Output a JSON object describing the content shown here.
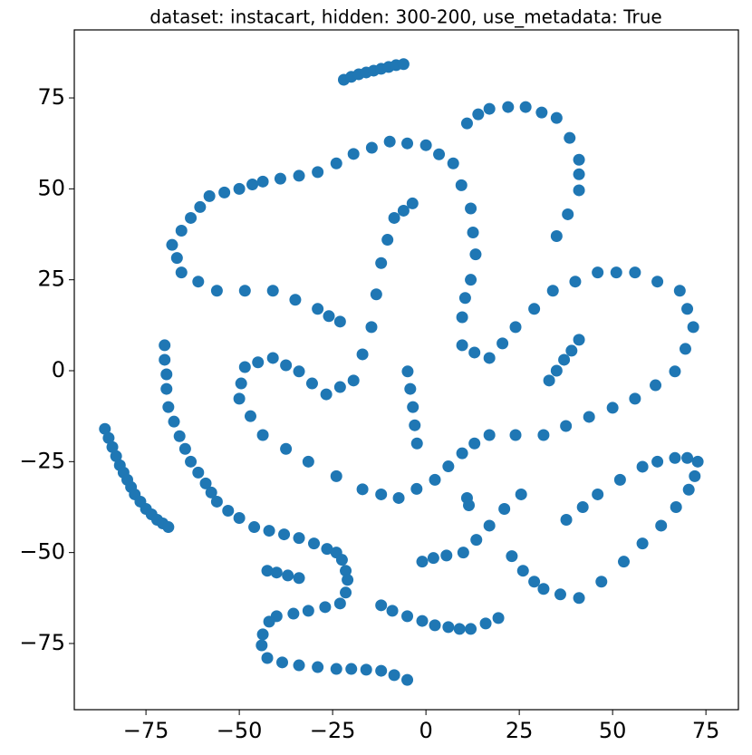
{
  "chart_data": {
    "type": "scatter",
    "title": "dataset: instacart, hidden: 300-200, use_metadata: True",
    "color": "#1f77b4",
    "xlim": [
      -94.2,
      83.7
    ],
    "ylim": [
      -93.2,
      93.7
    ],
    "xticks": [
      {
        "value": -75,
        "label": "−75"
      },
      {
        "value": -50,
        "label": "−50"
      },
      {
        "value": -25,
        "label": "−25"
      },
      0,
      25,
      50,
      75
    ],
    "yticks": [
      {
        "value": -75,
        "label": "−75"
      },
      {
        "value": -50,
        "label": "−50"
      },
      {
        "value": -25,
        "label": "−25"
      },
      0,
      25,
      50,
      75
    ],
    "x": [
      -22,
      -20,
      -18,
      -16,
      -14,
      -12,
      -10,
      -8,
      -6,
      -86,
      -85,
      -84,
      -83,
      -82,
      -81,
      -80,
      -79,
      -78,
      -76.5,
      -75,
      -73.5,
      -72,
      -70.5,
      -69,
      -70,
      -70,
      -69.5,
      -69.5,
      -69,
      -67.5,
      -66,
      -64.5,
      -63,
      -61,
      -59,
      -57.5,
      -56,
      -53,
      -50,
      -46,
      -42,
      -38,
      -34,
      -30,
      -26.5,
      -24,
      -22.5,
      -21.5,
      -21,
      -21.5,
      -23,
      -27,
      -31.5,
      -35.5,
      -40,
      -42,
      -43.7,
      -44,
      -42.5,
      -38.5,
      -34,
      -29,
      -24,
      -20,
      -16,
      -12,
      -8.5,
      -5,
      -42.5,
      -40,
      -37,
      -34,
      -12,
      -9,
      -5,
      -1,
      2.4,
      6,
      9,
      12,
      16,
      19.4,
      11,
      11.5,
      -1,
      2,
      5.5,
      10,
      13.5,
      17,
      21,
      25.5,
      23,
      26,
      29,
      31.5,
      36,
      41,
      47,
      53,
      58,
      63,
      67,
      70.4,
      72,
      72.8,
      70,
      66.7,
      62,
      58,
      52,
      46,
      42,
      37.6,
      11,
      14,
      17,
      22,
      26.7,
      31,
      35,
      38.5,
      41,
      41,
      41,
      38,
      35,
      33,
      35,
      37,
      39,
      41,
      -68,
      -65.5,
      -63,
      -60.5,
      -58,
      -54,
      -50,
      -46.5,
      -43.7,
      -39,
      -34,
      -29,
      -24,
      -19.4,
      -14.5,
      -9.7,
      -5,
      0,
      3.5,
      7.3,
      9.5,
      12,
      12.6,
      13.3,
      12,
      10.5,
      9.7,
      9.7,
      13,
      17,
      20.5,
      24,
      29,
      34,
      40,
      46,
      51,
      56,
      62,
      68,
      70,
      71.6,
      69.5,
      66.7,
      61.5,
      56,
      50,
      43.7,
      37.5,
      31.5,
      24,
      17,
      13,
      9.7,
      6,
      2.4,
      -2.5,
      -7.3,
      -12,
      -17,
      -24,
      -31.5,
      -37.5,
      -43.7,
      -47,
      -50,
      -49.5,
      -48.5,
      -45,
      -41,
      -37.5,
      -34,
      -30.5,
      -26.7,
      -23,
      -19.4,
      -17,
      -14.6,
      -13.3,
      -12,
      -10.3,
      -8.5,
      -6,
      -3.6,
      -66.7,
      -65.5,
      -61,
      -56,
      -48.5,
      -41,
      -35,
      -29,
      -26,
      -23,
      -4.9,
      -4.2,
      -3.5,
      -3,
      -2.4
    ],
    "values": [
      80,
      80.8,
      81.5,
      82,
      82.5,
      83,
      83.5,
      84,
      84.3,
      -16,
      -18.5,
      -21,
      -23.5,
      -26,
      -28,
      -30,
      -32,
      -34,
      -36,
      -38,
      -39.5,
      -41,
      -42,
      -43,
      7,
      3,
      -1,
      -5,
      -10,
      -14,
      -18,
      -21.5,
      -25,
      -28,
      -31,
      -33.5,
      -36,
      -38.5,
      -40.5,
      -43,
      -44,
      -45,
      -46,
      -47.5,
      -49,
      -50,
      -52,
      -55,
      -57.5,
      -61,
      -64,
      -65,
      -66,
      -66.8,
      -67.5,
      -69,
      -72.5,
      -75.5,
      -79,
      -80.2,
      -81,
      -81.5,
      -82,
      -82,
      -82.2,
      -82.5,
      -83.7,
      -85,
      -55,
      -55.5,
      -56.3,
      -57,
      -64.5,
      -66,
      -67.5,
      -68.8,
      -70,
      -70.5,
      -71,
      -71,
      -69.5,
      -68,
      -35,
      -37,
      -52.5,
      -51.5,
      -50.8,
      -50,
      -46.5,
      -42.6,
      -38,
      -34,
      -51,
      -55,
      -58,
      -60,
      -61.5,
      -62.5,
      -58,
      -52.5,
      -47.5,
      -42.6,
      -37.5,
      -32.7,
      -29,
      -25,
      -24,
      -24,
      -25,
      -26.4,
      -30,
      -34,
      -37.5,
      -41,
      68,
      70.5,
      72,
      72.5,
      72.5,
      71,
      69.5,
      64,
      58,
      54,
      49.6,
      43,
      37,
      -2.7,
      0,
      3,
      5.5,
      8.5,
      34.6,
      38.5,
      42,
      45,
      48,
      49,
      50,
      51.2,
      52,
      52.8,
      53.6,
      54.6,
      57,
      59.6,
      61.3,
      63,
      62.5,
      62,
      59.5,
      57,
      51,
      44.6,
      38,
      32,
      25,
      20,
      14.7,
      7,
      5,
      3.5,
      7.5,
      12,
      17,
      22,
      24.5,
      27,
      27,
      27,
      24.5,
      22,
      17,
      12,
      6,
      -0.2,
      -4,
      -7.7,
      -10.2,
      -12.7,
      -15.2,
      -17.7,
      -17.7,
      -17.7,
      -20,
      -22.7,
      -26.3,
      -30,
      -32.5,
      -35,
      -34,
      -32.6,
      -29,
      -25,
      -21.5,
      -17.7,
      -12.5,
      -7.7,
      -3.5,
      1,
      2.3,
      3.5,
      1.5,
      -0.2,
      -3.5,
      -6.5,
      -4.5,
      -2.7,
      4.5,
      12,
      21,
      29.6,
      36,
      42,
      44,
      46,
      31,
      27,
      24.5,
      22,
      22,
      22,
      19.5,
      17,
      15,
      13.5,
      -0.2,
      -5,
      -10,
      -15,
      -20
    ]
  }
}
